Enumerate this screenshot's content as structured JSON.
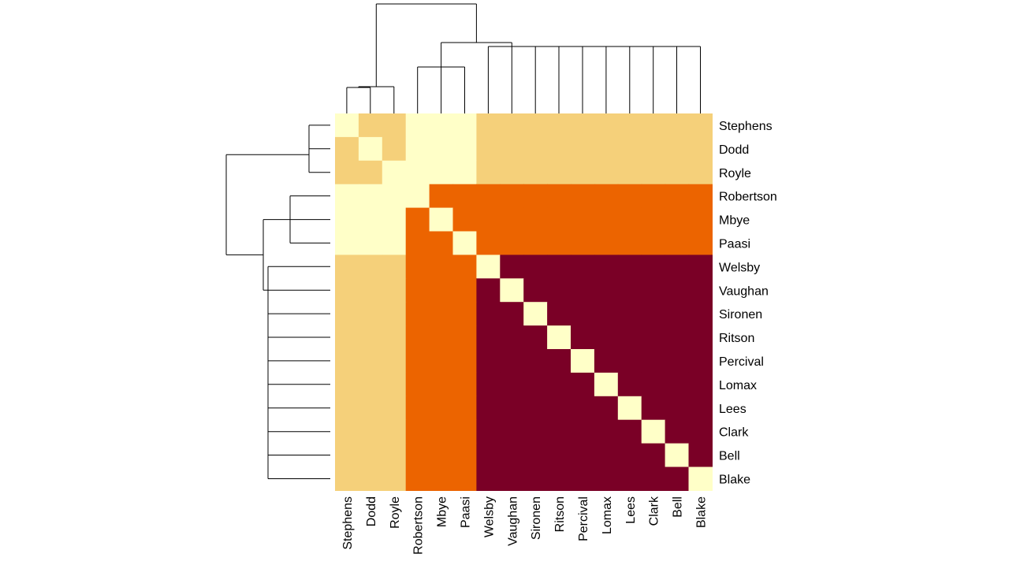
{
  "chart_data": {
    "type": "heatmap",
    "title": "",
    "xlabel": "",
    "ylabel": "",
    "legend": "none",
    "row_labels": [
      "Stephens",
      "Dodd",
      "Royle",
      "Robertson",
      "Mbye",
      "Paasi",
      "Welsby",
      "Vaughan",
      "Sironen",
      "Ritson",
      "Percival",
      "Lomax",
      "Lees",
      "Clark",
      "Bell",
      "Blake"
    ],
    "col_labels": [
      "Stephens",
      "Dodd",
      "Royle",
      "Robertson",
      "Mbye",
      "Paasi",
      "Welsby",
      "Vaughan",
      "Sironen",
      "Ritson",
      "Percival",
      "Lomax",
      "Lees",
      "Clark",
      "Bell",
      "Blake"
    ],
    "colors": {
      "level_0": "#FFFFC8",
      "level_1": "#F5D07A",
      "level_2": "#EC6400",
      "level_3": "#7A0026"
    },
    "values": [
      [
        0,
        1,
        1,
        0,
        0,
        0,
        1,
        1,
        1,
        1,
        1,
        1,
        1,
        1,
        1,
        1
      ],
      [
        1,
        0,
        1,
        0,
        0,
        0,
        1,
        1,
        1,
        1,
        1,
        1,
        1,
        1,
        1,
        1
      ],
      [
        1,
        1,
        0,
        0,
        0,
        0,
        1,
        1,
        1,
        1,
        1,
        1,
        1,
        1,
        1,
        1
      ],
      [
        0,
        0,
        0,
        0,
        2,
        2,
        2,
        2,
        2,
        2,
        2,
        2,
        2,
        2,
        2,
        2
      ],
      [
        0,
        0,
        0,
        2,
        0,
        2,
        2,
        2,
        2,
        2,
        2,
        2,
        2,
        2,
        2,
        2
      ],
      [
        0,
        0,
        0,
        2,
        2,
        0,
        2,
        2,
        2,
        2,
        2,
        2,
        2,
        2,
        2,
        2
      ],
      [
        1,
        1,
        1,
        2,
        2,
        2,
        0,
        3,
        3,
        3,
        3,
        3,
        3,
        3,
        3,
        3
      ],
      [
        1,
        1,
        1,
        2,
        2,
        2,
        3,
        0,
        3,
        3,
        3,
        3,
        3,
        3,
        3,
        3
      ],
      [
        1,
        1,
        1,
        2,
        2,
        2,
        3,
        3,
        0,
        3,
        3,
        3,
        3,
        3,
        3,
        3
      ],
      [
        1,
        1,
        1,
        2,
        2,
        2,
        3,
        3,
        3,
        0,
        3,
        3,
        3,
        3,
        3,
        3
      ],
      [
        1,
        1,
        1,
        2,
        2,
        2,
        3,
        3,
        3,
        3,
        0,
        3,
        3,
        3,
        3,
        3
      ],
      [
        1,
        1,
        1,
        2,
        2,
        2,
        3,
        3,
        3,
        3,
        3,
        0,
        3,
        3,
        3,
        3
      ],
      [
        1,
        1,
        1,
        2,
        2,
        2,
        3,
        3,
        3,
        3,
        3,
        3,
        0,
        3,
        3,
        3
      ],
      [
        1,
        1,
        1,
        2,
        2,
        2,
        3,
        3,
        3,
        3,
        3,
        3,
        3,
        0,
        3,
        3
      ],
      [
        1,
        1,
        1,
        2,
        2,
        2,
        3,
        3,
        3,
        3,
        3,
        3,
        3,
        3,
        0,
        3
      ],
      [
        1,
        1,
        1,
        2,
        2,
        2,
        3,
        3,
        3,
        3,
        3,
        3,
        3,
        3,
        3,
        0
      ]
    ],
    "dendrogram": {
      "groups": [
        [
          "Stephens",
          "Dodd",
          "Royle"
        ],
        [
          "Robertson",
          "Mbye",
          "Paasi"
        ],
        [
          "Welsby",
          "Vaughan",
          "Sironen",
          "Ritson",
          "Percival",
          "Lomax",
          "Lees",
          "Clark",
          "Bell",
          "Blake"
        ]
      ],
      "merge_order": [
        [
          "group_2",
          "group_3"
        ],
        [
          "group_1",
          "merged_2_3"
        ]
      ]
    }
  }
}
